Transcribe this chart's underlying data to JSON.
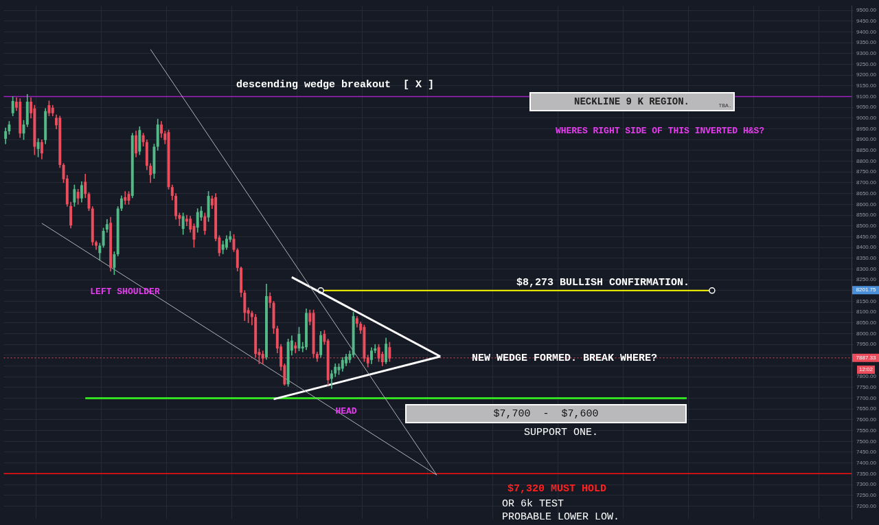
{
  "chart_data": {
    "type": "candlestick",
    "categories": [
      null,
      null,
      null,
      null,
      null,
      null,
      null,
      null,
      null,
      null,
      null,
      null,
      null,
      null,
      null,
      null,
      null,
      null,
      null,
      null,
      null,
      null,
      null,
      null,
      null,
      null,
      null,
      null,
      null,
      null,
      null,
      null,
      null,
      null,
      null,
      null,
      null,
      null,
      null,
      null,
      null,
      null,
      null,
      null,
      null,
      null,
      null,
      null,
      null,
      null,
      null,
      null,
      null,
      null,
      null,
      null,
      null,
      null,
      null,
      null,
      null,
      null,
      null,
      null,
      null,
      null,
      null,
      null,
      null,
      null,
      null,
      null,
      null,
      null,
      null,
      null,
      null,
      null,
      null,
      null,
      null,
      null,
      null,
      null,
      null,
      null,
      null,
      null,
      null,
      null,
      null,
      null,
      null,
      null,
      null,
      null,
      null,
      null,
      null,
      null,
      null,
      null,
      null,
      null,
      null,
      null,
      null,
      null,
      null,
      null,
      null,
      null,
      null,
      null,
      null,
      null,
      null,
      null,
      null,
      null,
      null,
      null,
      null,
      null,
      null,
      null,
      null,
      null,
      null,
      null,
      null,
      null,
      null,
      null,
      null,
      null,
      null,
      null,
      null,
      null,
      null,
      null,
      null,
      null,
      null,
      null,
      null,
      null,
      null,
      null,
      null,
      null,
      null,
      null,
      null,
      null,
      null,
      null,
      null,
      null,
      null,
      null,
      null,
      null,
      null,
      null,
      null,
      null,
      null,
      null,
      null,
      null,
      null,
      null,
      null,
      null,
      null,
      null,
      null,
      null,
      null,
      null,
      null,
      null,
      null,
      null,
      null,
      null,
      null,
      null,
      null,
      null,
      null,
      null,
      null,
      null,
      null,
      null,
      null,
      null,
      null,
      null,
      null,
      null,
      null,
      null,
      null,
      null,
      null,
      null,
      null,
      null,
      null,
      null,
      null,
      null,
      null,
      null,
      null,
      null,
      null,
      null,
      null,
      null,
      null,
      null,
      null,
      null,
      null,
      null,
      null,
      null,
      null,
      null
    ],
    "ohlc": [
      [
        8904,
        8955,
        8880,
        8939
      ],
      [
        8939,
        8985,
        8925,
        8970
      ],
      [
        9023,
        9100,
        9010,
        9079
      ],
      [
        9076,
        9095,
        9035,
        9048
      ],
      [
        9076,
        9090,
        8910,
        8929
      ],
      [
        8929,
        8990,
        8900,
        8970
      ],
      [
        8970,
        9110,
        8960,
        9076
      ],
      [
        9076,
        9095,
        9000,
        9023
      ],
      [
        9045,
        9060,
        8830,
        8867
      ],
      [
        8857,
        8905,
        8820,
        8889
      ],
      [
        8889,
        8900,
        8810,
        8836
      ],
      [
        8898,
        9045,
        8880,
        9032
      ],
      [
        9060,
        9080,
        9010,
        9023
      ],
      [
        9048,
        9060,
        9010,
        9023
      ],
      [
        9001,
        9015,
        8950,
        8967
      ],
      [
        9001,
        9010,
        8770,
        8783
      ],
      [
        8783,
        8790,
        8700,
        8717
      ],
      [
        8720,
        8735,
        8590,
        8600
      ],
      [
        8592,
        8610,
        8490,
        8502
      ],
      [
        8608,
        8690,
        8590,
        8670
      ],
      [
        8658,
        8670,
        8600,
        8627
      ],
      [
        8627,
        8705,
        8610,
        8689
      ],
      [
        8705,
        8740,
        8630,
        8648
      ],
      [
        8648,
        8655,
        8570,
        8580
      ],
      [
        8580,
        8590,
        8410,
        8424
      ],
      [
        8424,
        8430,
        8390,
        8408
      ],
      [
        8374,
        8420,
        8340,
        8408
      ],
      [
        8408,
        8490,
        8400,
        8477
      ],
      [
        8483,
        8530,
        8470,
        8508
      ],
      [
        8514,
        8540,
        8290,
        8305
      ],
      [
        8305,
        8380,
        8274,
        8368
      ],
      [
        8368,
        8590,
        8360,
        8580
      ],
      [
        8580,
        8640,
        8570,
        8627
      ],
      [
        8633,
        8660,
        8600,
        8617
      ],
      [
        8648,
        8660,
        8600,
        8617
      ],
      [
        8639,
        8930,
        8630,
        8920
      ],
      [
        8920,
        8940,
        8820,
        8836
      ],
      [
        8845,
        8960,
        8830,
        8945
      ],
      [
        8920,
        8930,
        8870,
        8889
      ],
      [
        8889,
        8900,
        8760,
        8779
      ],
      [
        8779,
        8790,
        8700,
        8736
      ],
      [
        8742,
        8880,
        8720,
        8867
      ],
      [
        8867,
        8995,
        8850,
        8970
      ],
      [
        8970,
        8985,
        8910,
        8929
      ],
      [
        8929,
        8940,
        8880,
        8898
      ],
      [
        8935,
        8945,
        8670,
        8680
      ],
      [
        8680,
        8690,
        8620,
        8639
      ],
      [
        8639,
        8650,
        8530,
        8545
      ],
      [
        8550,
        8560,
        8500,
        8533
      ],
      [
        8486,
        8560,
        8460,
        8545
      ],
      [
        8533,
        8550,
        8500,
        8520
      ],
      [
        8533,
        8545,
        8470,
        8483
      ],
      [
        8499,
        8510,
        8400,
        8436
      ],
      [
        8492,
        8580,
        8470,
        8564
      ],
      [
        8539,
        8590,
        8525,
        8570
      ],
      [
        8545,
        8560,
        8460,
        8477
      ],
      [
        8539,
        8660,
        8520,
        8639
      ],
      [
        8627,
        8640,
        8580,
        8595
      ],
      [
        8633,
        8650,
        8430,
        8440
      ],
      [
        8446,
        8455,
        8360,
        8374
      ],
      [
        8389,
        8430,
        8370,
        8414
      ],
      [
        8399,
        8455,
        8390,
        8440
      ],
      [
        8436,
        8475,
        8425,
        8452
      ],
      [
        8440,
        8460,
        8380,
        8389
      ],
      [
        8389,
        8395,
        8290,
        8305
      ],
      [
        8305,
        8310,
        8170,
        8190
      ],
      [
        8190,
        8200,
        8060,
        8096
      ],
      [
        8109,
        8120,
        8050,
        8093
      ],
      [
        8096,
        8105,
        8040,
        8077
      ],
      [
        8077,
        8090,
        7890,
        7906
      ],
      [
        7915,
        7930,
        7860,
        7900
      ],
      [
        7906,
        7920,
        7860,
        7884
      ],
      [
        7890,
        8230,
        7880,
        8174
      ],
      [
        8174,
        8190,
        8120,
        8143
      ],
      [
        8143,
        8150,
        8000,
        8024
      ],
      [
        8024,
        8035,
        7910,
        7931
      ],
      [
        7940,
        7950,
        7830,
        7846
      ],
      [
        7853,
        7860,
        7760,
        7765
      ],
      [
        7765,
        7975,
        7755,
        7962
      ],
      [
        7921,
        7990,
        7900,
        7968
      ],
      [
        7945,
        7960,
        7910,
        7931
      ],
      [
        7931,
        8030,
        7920,
        7999
      ],
      [
        7931,
        7960,
        7915,
        7940
      ],
      [
        7937,
        8115,
        7925,
        8096
      ],
      [
        8096,
        8110,
        8040,
        8055
      ],
      [
        8096,
        8110,
        7890,
        7906
      ],
      [
        7906,
        7915,
        7870,
        7884
      ],
      [
        7900,
        8010,
        7890,
        7993
      ],
      [
        7999,
        8015,
        7950,
        7962
      ],
      [
        7968,
        7975,
        7760,
        7784
      ],
      [
        7790,
        7830,
        7745,
        7815
      ],
      [
        7815,
        7860,
        7800,
        7846
      ],
      [
        7830,
        7860,
        7810,
        7846
      ],
      [
        7837,
        7890,
        7825,
        7878
      ],
      [
        7862,
        7905,
        7850,
        7893
      ],
      [
        7878,
        7920,
        7865,
        7906
      ],
      [
        7900,
        8100,
        7890,
        8081
      ],
      [
        8071,
        8080,
        8030,
        8046
      ],
      [
        8046,
        8055,
        8000,
        8015
      ],
      [
        8031,
        8040,
        7870,
        7884
      ],
      [
        7890,
        7900,
        7845,
        7862
      ],
      [
        7878,
        7935,
        7860,
        7921
      ],
      [
        7921,
        7950,
        7910,
        7931
      ],
      [
        7937,
        7950,
        7870,
        7884
      ],
      [
        7906,
        7915,
        7850,
        7868
      ],
      [
        7868,
        7980,
        7860,
        7953
      ],
      [
        7937,
        7960,
        7870,
        7884
      ],
      null,
      null,
      null,
      null,
      null,
      null,
      null,
      null,
      null,
      null,
      null,
      null,
      null,
      null,
      null,
      null,
      null,
      null,
      null,
      null,
      null,
      null,
      null,
      null,
      null,
      null,
      null,
      null,
      null,
      null,
      null,
      null,
      null,
      null,
      null,
      null,
      null,
      null,
      null,
      null,
      null,
      null,
      null,
      null,
      null,
      null,
      null,
      null,
      null,
      null,
      null,
      null,
      null,
      null,
      null,
      null,
      null,
      null,
      null,
      null,
      null,
      null,
      null,
      null,
      null,
      null,
      null,
      null,
      null,
      null,
      null,
      null,
      null,
      null,
      null,
      null,
      null,
      null,
      null,
      null,
      null,
      null,
      null,
      null,
      null,
      null,
      null,
      null,
      null,
      null,
      null,
      null,
      null,
      null,
      null,
      null,
      null,
      null,
      null,
      null,
      null,
      null,
      null,
      null,
      null,
      null,
      null,
      null,
      null,
      null,
      null,
      null,
      null,
      null,
      null,
      null,
      null,
      null,
      null,
      null,
      null,
      null,
      null,
      null,
      null,
      null,
      null
    ],
    "series": [
      {
        "type": "line",
        "color": "#b0b3b8",
        "values": [
          null,
          null,
          null,
          null,
          null,
          null,
          null,
          null,
          null,
          null,
          null,
          null,
          null,
          null,
          null,
          null,
          null,
          null,
          null,
          null,
          null,
          null,
          null,
          null,
          null,
          null,
          null,
          null,
          null,
          null,
          null,
          null,
          null,
          null,
          null,
          null,
          null,
          null,
          null,
          null,
          9319,
          null,
          null,
          null,
          null,
          null,
          null,
          null,
          null,
          null,
          null,
          null,
          null,
          null,
          null,
          null,
          null,
          null,
          null,
          null,
          null,
          null,
          null,
          null,
          null,
          null,
          null,
          null,
          null,
          null,
          null,
          null,
          null,
          null,
          null,
          null,
          null,
          null,
          null,
          null,
          null,
          null,
          null,
          null,
          null,
          null,
          null,
          null,
          null,
          null,
          null,
          null,
          null,
          null,
          null,
          null,
          null,
          null,
          null,
          null,
          null,
          null,
          null,
          null,
          null,
          null,
          null,
          null,
          null,
          null,
          null,
          null,
          null,
          null,
          null,
          null,
          null,
          null,
          null,
          7344,
          null,
          null,
          null,
          null,
          null,
          null,
          null,
          null,
          null,
          null,
          null,
          null,
          null,
          null,
          null,
          null,
          null,
          null,
          null,
          null,
          null,
          null,
          null,
          null,
          null,
          null,
          null,
          null,
          null,
          null,
          null,
          null,
          null,
          null,
          null,
          null,
          null,
          null,
          null,
          null,
          null,
          null,
          null,
          null,
          null,
          null,
          null,
          null,
          null,
          null,
          null,
          null,
          null,
          null,
          null,
          null,
          null,
          null,
          null,
          null,
          null,
          null,
          null,
          null,
          null,
          null,
          null,
          null,
          null,
          null,
          null,
          null,
          null,
          null,
          null,
          null,
          null,
          null,
          null,
          null,
          null,
          null,
          null,
          null,
          null,
          null,
          null,
          null,
          null,
          null,
          null,
          null,
          null,
          null,
          null,
          null,
          null,
          null,
          null,
          null,
          null,
          null,
          null,
          null,
          null,
          null,
          null,
          null,
          null,
          null,
          null,
          null,
          null,
          null
        ]
      },
      {
        "type": "line",
        "color": "#b0b3b8",
        "values": [
          null,
          null,
          null,
          null,
          null,
          null,
          null,
          null,
          null,
          null,
          8512,
          null,
          null,
          null,
          null,
          null,
          null,
          null,
          null,
          null,
          null,
          null,
          null,
          null,
          null,
          null,
          null,
          null,
          null,
          null,
          null,
          null,
          null,
          null,
          null,
          null,
          null,
          null,
          null,
          null,
          null,
          null,
          null,
          null,
          null,
          null,
          null,
          null,
          null,
          null,
          null,
          null,
          null,
          null,
          null,
          null,
          null,
          null,
          null,
          null,
          null,
          null,
          null,
          null,
          null,
          null,
          null,
          null,
          null,
          null,
          null,
          null,
          null,
          null,
          null,
          null,
          null,
          null,
          null,
          null,
          null,
          null,
          null,
          null,
          null,
          null,
          null,
          null,
          null,
          null,
          null,
          null,
          null,
          null,
          null,
          null,
          null,
          null,
          null,
          null,
          null,
          null,
          null,
          null,
          null,
          null,
          null,
          null,
          null,
          null,
          null,
          null,
          null,
          null,
          null,
          null,
          null,
          null,
          null,
          7344,
          null,
          null,
          null,
          null,
          null,
          null,
          null,
          null,
          null,
          null,
          null,
          null,
          null,
          null,
          null,
          null,
          null,
          null,
          null,
          null,
          null,
          null,
          null,
          null,
          null,
          null,
          null,
          null,
          null,
          null,
          null,
          null,
          null,
          null,
          null,
          null,
          null,
          null,
          null,
          null,
          null,
          null,
          null,
          null,
          null,
          null,
          null,
          null,
          null,
          null,
          null,
          null,
          null,
          null,
          null,
          null,
          null,
          null,
          null,
          null,
          null,
          null,
          null,
          null,
          null,
          null,
          null,
          null,
          null,
          null,
          null,
          null,
          null,
          null,
          null,
          null,
          null,
          null,
          null,
          null,
          null,
          null,
          null,
          null,
          null,
          null,
          null,
          null,
          null,
          null,
          null,
          null,
          null,
          null,
          null,
          null,
          null,
          null,
          null,
          null,
          null,
          null,
          null,
          null,
          null,
          null,
          null,
          null,
          null,
          null,
          null,
          null,
          null,
          null
        ]
      },
      {
        "type": "line",
        "color": "#ffffff",
        "values": [
          null,
          null,
          null,
          null,
          null,
          null,
          null,
          null,
          null,
          null,
          null,
          null,
          null,
          null,
          null,
          null,
          null,
          null,
          null,
          null,
          null,
          null,
          null,
          null,
          null,
          null,
          null,
          null,
          null,
          null,
          null,
          null,
          null,
          null,
          null,
          null,
          null,
          null,
          null,
          null,
          null,
          null,
          null,
          null,
          null,
          null,
          null,
          null,
          null,
          null,
          null,
          null,
          null,
          null,
          null,
          null,
          null,
          null,
          null,
          null,
          null,
          null,
          null,
          null,
          null,
          null,
          null,
          null,
          null,
          null,
          null,
          null,
          null,
          null,
          null,
          null,
          null,
          null,
          null,
          8262,
          null,
          null,
          null,
          null,
          null,
          null,
          null,
          null,
          null,
          null,
          null,
          null,
          null,
          null,
          null,
          null,
          null,
          null,
          null,
          null,
          null,
          null,
          null,
          null,
          null,
          null,
          null,
          null,
          null,
          null,
          null,
          null,
          null,
          null,
          null,
          null,
          null,
          null,
          null,
          null,
          7894,
          null,
          null,
          null,
          null,
          null,
          null,
          null,
          null,
          null,
          null,
          null,
          null,
          null,
          null,
          null,
          null,
          null,
          null,
          null,
          null,
          null,
          null,
          null,
          null,
          null,
          null,
          null,
          null,
          null,
          null,
          null,
          null,
          null,
          null,
          null,
          null,
          null,
          null,
          null,
          null,
          null,
          null,
          null,
          null,
          null,
          null,
          null,
          null,
          null,
          null,
          null,
          null,
          null,
          null,
          null,
          null,
          null,
          null,
          null,
          null,
          null,
          null,
          null,
          null,
          null,
          null,
          null,
          null,
          null,
          null,
          null,
          null,
          null,
          null,
          null,
          null,
          null,
          null,
          null,
          null,
          null,
          null,
          null,
          null,
          null,
          null,
          null,
          null,
          null,
          null,
          null,
          null,
          null,
          null,
          null,
          null,
          null,
          null,
          null,
          null,
          null,
          null,
          null,
          null,
          null,
          null,
          null,
          null,
          null,
          null,
          null,
          null,
          null
        ]
      },
      {
        "type": "line",
        "color": "#ffffff",
        "values": [
          null,
          null,
          null,
          null,
          null,
          null,
          null,
          null,
          null,
          null,
          null,
          null,
          null,
          null,
          null,
          null,
          null,
          null,
          null,
          null,
          null,
          null,
          null,
          null,
          null,
          null,
          null,
          null,
          null,
          null,
          null,
          null,
          null,
          null,
          null,
          null,
          null,
          null,
          null,
          null,
          null,
          null,
          null,
          null,
          null,
          null,
          null,
          null,
          null,
          null,
          null,
          null,
          null,
          null,
          null,
          null,
          null,
          null,
          null,
          null,
          null,
          null,
          null,
          null,
          null,
          null,
          null,
          null,
          null,
          null,
          null,
          null,
          null,
          null,
          7696,
          null,
          null,
          null,
          null,
          null,
          null,
          null,
          null,
          null,
          null,
          null,
          null,
          null,
          null,
          null,
          null,
          null,
          null,
          null,
          null,
          null,
          null,
          null,
          null,
          null,
          null,
          null,
          null,
          null,
          null,
          null,
          null,
          null,
          null,
          null,
          null,
          null,
          null,
          null,
          null,
          null,
          null,
          null,
          null,
          null,
          7894,
          null,
          null,
          null,
          null,
          null,
          null,
          null,
          null,
          null,
          null,
          null,
          null,
          null,
          null,
          null,
          null,
          null,
          null,
          null,
          null,
          null,
          null,
          null,
          null,
          null,
          null,
          null,
          null,
          null,
          null,
          null,
          null,
          null,
          null,
          null,
          null,
          null,
          null,
          null,
          null,
          null,
          null,
          null,
          null,
          null,
          null,
          null,
          null,
          null,
          null,
          null,
          null,
          null,
          null,
          null,
          null,
          null,
          null,
          null,
          null,
          null,
          null,
          null,
          null,
          null,
          null,
          null,
          null,
          null,
          null,
          null,
          null,
          null,
          null,
          null,
          null,
          null,
          null,
          null,
          null,
          null,
          null,
          null,
          null,
          null,
          null,
          null,
          null,
          null,
          null,
          null,
          null,
          null,
          null,
          null,
          null,
          null,
          null,
          null,
          null,
          null,
          null,
          null,
          null,
          null,
          null,
          null,
          null,
          null,
          null,
          null,
          null,
          null
        ]
      },
      {
        "type": "line",
        "color": "#ffff00",
        "marker": "circle",
        "values": [
          null,
          null,
          null,
          null,
          null,
          null,
          null,
          null,
          null,
          null,
          null,
          null,
          null,
          null,
          null,
          null,
          null,
          null,
          null,
          null,
          null,
          null,
          null,
          null,
          null,
          null,
          null,
          null,
          null,
          null,
          null,
          null,
          null,
          null,
          null,
          null,
          null,
          null,
          null,
          null,
          null,
          null,
          null,
          null,
          null,
          null,
          null,
          null,
          null,
          null,
          null,
          null,
          null,
          null,
          null,
          null,
          null,
          null,
          null,
          null,
          null,
          null,
          null,
          null,
          null,
          null,
          null,
          null,
          null,
          null,
          null,
          null,
          null,
          null,
          null,
          null,
          null,
          null,
          null,
          null,
          null,
          null,
          null,
          null,
          null,
          null,
          null,
          8200,
          null,
          null,
          null,
          null,
          null,
          null,
          null,
          null,
          null,
          null,
          null,
          null,
          null,
          null,
          null,
          null,
          null,
          null,
          null,
          null,
          null,
          null,
          null,
          null,
          null,
          null,
          null,
          null,
          null,
          null,
          null,
          null,
          null,
          null,
          null,
          null,
          null,
          null,
          null,
          null,
          null,
          null,
          null,
          null,
          null,
          null,
          null,
          null,
          null,
          null,
          null,
          null,
          null,
          null,
          null,
          null,
          null,
          null,
          null,
          null,
          null,
          null,
          null,
          null,
          null,
          null,
          null,
          null,
          null,
          null,
          null,
          null,
          null,
          null,
          null,
          null,
          null,
          null,
          null,
          null,
          null,
          null,
          null,
          null,
          null,
          null,
          null,
          null,
          null,
          null,
          null,
          null,
          null,
          null,
          null,
          null,
          null,
          null,
          null,
          null,
          null,
          null,
          null,
          null,
          null,
          null,
          null,
          8200,
          null,
          null,
          null,
          null,
          null,
          null,
          null,
          null,
          null,
          null,
          null,
          null,
          null,
          null,
          null,
          null,
          null,
          null,
          null,
          null,
          null,
          null,
          null,
          null,
          null,
          null,
          null,
          null,
          null,
          null,
          null,
          null,
          null,
          null,
          null,
          null,
          null,
          null
        ]
      },
      {
        "type": "line",
        "color": "#33dd22",
        "values": [
          null,
          null,
          null,
          null,
          null,
          null,
          null,
          null,
          null,
          null,
          null,
          null,
          null,
          null,
          null,
          null,
          null,
          null,
          null,
          null,
          null,
          null,
          7700,
          null,
          null,
          null,
          null,
          null,
          null,
          null,
          null,
          null,
          null,
          null,
          null,
          null,
          null,
          null,
          null,
          null,
          null,
          null,
          null,
          null,
          null,
          null,
          null,
          null,
          null,
          null,
          null,
          null,
          null,
          null,
          null,
          null,
          null,
          null,
          null,
          null,
          null,
          null,
          null,
          null,
          null,
          null,
          null,
          null,
          null,
          null,
          null,
          null,
          null,
          null,
          null,
          null,
          null,
          null,
          null,
          null,
          null,
          null,
          null,
          null,
          null,
          null,
          null,
          null,
          null,
          null,
          null,
          null,
          null,
          null,
          null,
          null,
          null,
          null,
          null,
          null,
          null,
          null,
          null,
          null,
          null,
          null,
          null,
          null,
          null,
          null,
          null,
          null,
          null,
          null,
          null,
          null,
          null,
          null,
          null,
          null,
          null,
          null,
          null,
          null,
          null,
          null,
          null,
          null,
          null,
          null,
          null,
          null,
          null,
          null,
          null,
          null,
          null,
          null,
          null,
          null,
          null,
          null,
          null,
          null,
          null,
          null,
          null,
          null,
          null,
          null,
          null,
          null,
          null,
          null,
          null,
          null,
          null,
          null,
          null,
          null,
          null,
          null,
          null,
          null,
          null,
          null,
          null,
          null,
          null,
          null,
          null,
          null,
          null,
          null,
          null,
          null,
          null,
          null,
          null,
          null,
          null,
          null,
          null,
          null,
          null,
          null,
          null,
          null,
          7700,
          null,
          null,
          null,
          null,
          null,
          null,
          null,
          null,
          null,
          null,
          null,
          null,
          null,
          null,
          null,
          null,
          null,
          null,
          null,
          null,
          null,
          null,
          null,
          null,
          null,
          null,
          null,
          null,
          null,
          null,
          null,
          null,
          null,
          null,
          null,
          null,
          null,
          null,
          null,
          null,
          null,
          null,
          null,
          null,
          null
        ]
      }
    ],
    "ylim": [
      7140,
      9520
    ],
    "yticks": [
      {
        "value": 7200,
        "label": "7200.00"
      },
      {
        "value": 7250,
        "label": "7250.00"
      },
      {
        "value": 7300,
        "label": "7300.00"
      },
      {
        "value": 7350,
        "label": "7350.00"
      },
      {
        "value": 7400,
        "label": "7400.00"
      },
      {
        "value": 7450,
        "label": "7450.00"
      },
      {
        "value": 7500,
        "label": "7500.00"
      },
      {
        "value": 7550,
        "label": "7550.00"
      },
      {
        "value": 7600,
        "label": "7600.00"
      },
      {
        "value": 7650,
        "label": "7650.00"
      },
      {
        "value": 7700,
        "label": "7700.00"
      },
      {
        "value": 7750,
        "label": "7750.00"
      },
      {
        "value": 7800,
        "label": "7800.00"
      },
      {
        "value": 7850,
        "label": null
      },
      {
        "value": 7900,
        "label": null
      },
      {
        "value": 7950,
        "label": "7950.00"
      },
      {
        "value": 8000,
        "label": "8000.00"
      },
      {
        "value": 8050,
        "label": "8050.00"
      },
      {
        "value": 8100,
        "label": "8100.00"
      },
      {
        "value": 8150,
        "label": "8150.00"
      },
      {
        "value": 8200,
        "label": null
      },
      {
        "value": 8250,
        "label": "8250.00"
      },
      {
        "value": 8300,
        "label": "8300.00"
      },
      {
        "value": 8350,
        "label": "8350.00"
      },
      {
        "value": 8400,
        "label": "8400.00"
      },
      {
        "value": 8450,
        "label": "8450.00"
      },
      {
        "value": 8500,
        "label": "8500.00"
      },
      {
        "value": 8550,
        "label": "8550.00"
      },
      {
        "value": 8600,
        "label": "8600.00"
      },
      {
        "value": 8650,
        "label": "8650.00"
      },
      {
        "value": 8700,
        "label": "8700.00"
      },
      {
        "value": 8750,
        "label": "8750.00"
      },
      {
        "value": 8800,
        "label": "8800.00"
      },
      {
        "value": 8850,
        "label": "8850.00"
      },
      {
        "value": 8900,
        "label": "8900.00"
      },
      {
        "value": 8950,
        "label": "8950.00"
      },
      {
        "value": 9000,
        "label": "9000.00"
      },
      {
        "value": 9050,
        "label": "9050.00"
      },
      {
        "value": 9100,
        "label": "9100.00"
      },
      {
        "value": 9150,
        "label": "9150.00"
      },
      {
        "value": 9200,
        "label": "9200.00"
      },
      {
        "value": 9250,
        "label": "9250.00"
      },
      {
        "value": 9300,
        "label": "9300.00"
      },
      {
        "value": 9350,
        "label": "9350.00"
      },
      {
        "value": 9400,
        "label": "9400.00"
      },
      {
        "value": 9450,
        "label": "9450.00"
      },
      {
        "value": 9500,
        "label": "9500.00"
      }
    ],
    "ref_lines": [
      {
        "axis": "y",
        "value": 9100,
        "color": "#a020c0"
      },
      {
        "axis": "y",
        "value": 7350,
        "color": "#ff1010"
      },
      {
        "axis": "y",
        "value": 7887.33,
        "label": "7887.33",
        "color": "#eb4d5c",
        "line_style": "dotted"
      }
    ],
    "annotations": [
      "descending wedge breakout  [ X ]",
      "NECKLINE 9 K REGION.",
      "TBA.",
      "WHERES RIGHT SIDE OF THIS INVERTED H&S?",
      "LEFT SHOULDER",
      "$8,273 BULLISH CONFIRMATION.",
      "NEW WEDGE FORMED. BREAK WHERE?",
      "HEAD",
      "$7,700  -  $7,600",
      "SUPPORT ONE.",
      "$7,320 MUST HOLD",
      "OR 6k TEST",
      "PROBABLE LOWER LOW.",
      "12:02",
      {
        "text": "8201.75",
        "y": 8201.75
      }
    ],
    "grid": true
  }
}
